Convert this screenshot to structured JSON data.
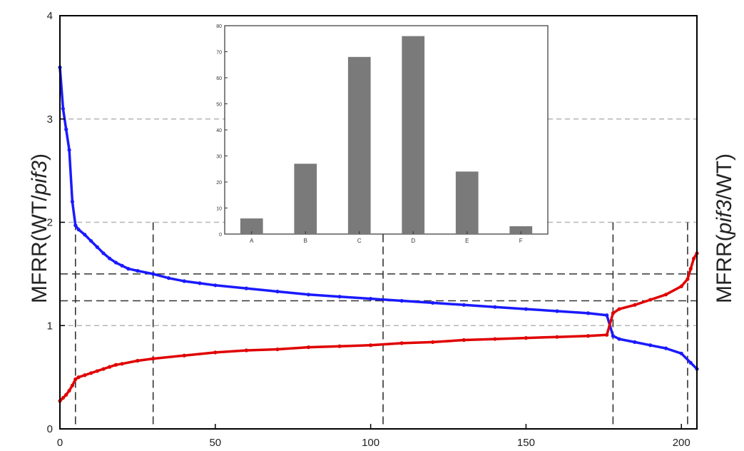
{
  "chart_data": [
    {
      "type": "line",
      "title": "",
      "xlabel": "",
      "ylabel_left": "MFRR(WT/pif3)",
      "ylabel_right": "MFRR(pif3/WT)",
      "xlim": [
        0,
        205
      ],
      "ylim": [
        0,
        4
      ],
      "x_ticks": [
        "0",
        "50",
        "100",
        "150",
        "200"
      ],
      "x_tick_values": [
        0,
        50,
        100,
        150,
        200
      ],
      "y_ticks": [
        "0",
        "1",
        "2",
        "3",
        "4"
      ],
      "y_tick_values": [
        0,
        1,
        2,
        3,
        4
      ],
      "grid": "horizontal dashed at 1, 2, 3",
      "reference_lines": {
        "horizontal": [
          1.24,
          1.5
        ],
        "vertical": [
          5,
          30,
          104,
          178,
          202
        ]
      },
      "series": [
        {
          "color": "#1a1aff",
          "x": [
            0,
            1,
            2,
            3,
            4,
            5,
            6,
            8,
            10,
            12,
            14,
            16,
            18,
            20,
            22,
            25,
            30,
            35,
            40,
            45,
            50,
            60,
            70,
            80,
            90,
            100,
            110,
            120,
            130,
            140,
            150,
            160,
            170,
            176,
            178,
            180,
            185,
            190,
            195,
            200,
            203,
            205
          ],
          "y": [
            3.5,
            3.1,
            2.9,
            2.7,
            2.2,
            1.97,
            1.93,
            1.88,
            1.82,
            1.76,
            1.7,
            1.65,
            1.61,
            1.58,
            1.55,
            1.53,
            1.5,
            1.46,
            1.43,
            1.41,
            1.39,
            1.36,
            1.33,
            1.3,
            1.28,
            1.26,
            1.24,
            1.22,
            1.2,
            1.18,
            1.16,
            1.14,
            1.12,
            1.1,
            0.9,
            0.87,
            0.84,
            0.81,
            0.78,
            0.73,
            0.64,
            0.58
          ]
        },
        {
          "color": "#e00000",
          "x": [
            0,
            1,
            2,
            3,
            4,
            5,
            6,
            8,
            10,
            12,
            14,
            16,
            18,
            20,
            25,
            30,
            40,
            50,
            60,
            70,
            80,
            90,
            100,
            110,
            120,
            130,
            140,
            150,
            160,
            170,
            176,
            178,
            180,
            185,
            190,
            195,
            200,
            202,
            203,
            204,
            205
          ],
          "y": [
            0.27,
            0.3,
            0.33,
            0.37,
            0.42,
            0.48,
            0.5,
            0.52,
            0.54,
            0.56,
            0.58,
            0.6,
            0.62,
            0.63,
            0.66,
            0.68,
            0.71,
            0.74,
            0.76,
            0.77,
            0.79,
            0.8,
            0.81,
            0.83,
            0.84,
            0.86,
            0.87,
            0.88,
            0.89,
            0.9,
            0.91,
            1.12,
            1.16,
            1.2,
            1.25,
            1.3,
            1.38,
            1.45,
            1.55,
            1.65,
            1.7
          ]
        }
      ]
    },
    {
      "type": "bar",
      "title": "",
      "categories": [
        "A",
        "B",
        "C",
        "D",
        "E",
        "F"
      ],
      "values": [
        6,
        27,
        68,
        76,
        24,
        3
      ],
      "ylim": [
        0,
        80
      ],
      "y_ticks": [
        "0",
        "10",
        "20",
        "30",
        "40",
        "50",
        "60",
        "70",
        "80"
      ],
      "y_tick_values": [
        0,
        10,
        20,
        30,
        40,
        50,
        60,
        70,
        80
      ],
      "bar_color": "#7a7a7a"
    }
  ]
}
